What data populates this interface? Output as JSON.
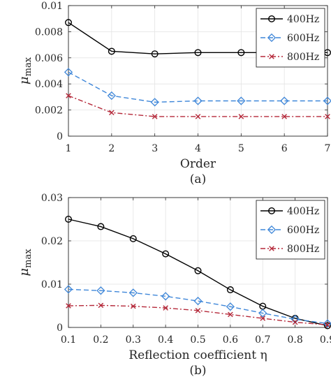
{
  "chart_data": [
    {
      "type": "line",
      "caption": "(a)",
      "xlabel": "Order",
      "ylabel": "μ",
      "ylabel_sub": "max",
      "xlim": [
        1,
        7
      ],
      "ylim": [
        0,
        0.01
      ],
      "xticks": [
        1,
        2,
        3,
        4,
        5,
        6,
        7
      ],
      "xtick_labels": [
        "1",
        "2",
        "3",
        "4",
        "5",
        "6",
        "7"
      ],
      "yticks": [
        0,
        0.002,
        0.004,
        0.006,
        0.008,
        0.01
      ],
      "ytick_labels": [
        "0",
        "0.002",
        "0.004",
        "0.006",
        "0.008",
        "0.01"
      ],
      "grid": true,
      "legend_position": "top-right",
      "x": [
        1,
        2,
        3,
        4,
        5,
        6,
        7
      ],
      "series": [
        {
          "name": "400Hz",
          "color": "#000000",
          "marker": "circle",
          "line": "solid",
          "values": [
            0.0087,
            0.0065,
            0.0063,
            0.0064,
            0.0064,
            0.0064,
            0.0064
          ]
        },
        {
          "name": "600Hz",
          "color": "#3f87d9",
          "marker": "diamond",
          "line": "dashed",
          "values": [
            0.0049,
            0.0031,
            0.0026,
            0.0027,
            0.0027,
            0.0027,
            0.0027
          ]
        },
        {
          "name": "800Hz",
          "color": "#b5293a",
          "marker": "cross",
          "line": "dashdot",
          "values": [
            0.0031,
            0.0018,
            0.0015,
            0.0015,
            0.0015,
            0.0015,
            0.0015
          ]
        }
      ]
    },
    {
      "type": "line",
      "caption": "(b)",
      "xlabel": "Reflection coefficient η",
      "ylabel": "μ",
      "ylabel_sub": "max",
      "xlim": [
        0.1,
        0.9
      ],
      "ylim": [
        0,
        0.03
      ],
      "xticks": [
        0.1,
        0.2,
        0.3,
        0.4,
        0.5,
        0.6,
        0.7,
        0.8,
        0.9
      ],
      "xtick_labels": [
        "0.1",
        "0.2",
        "0.3",
        "0.4",
        "0.5",
        "0.6",
        "0.7",
        "0.8",
        "0.9"
      ],
      "yticks": [
        0,
        0.01,
        0.02,
        0.03
      ],
      "ytick_labels": [
        "0",
        "0.01",
        "0.02",
        "0.03"
      ],
      "grid": true,
      "legend_position": "top-right",
      "x": [
        0.1,
        0.2,
        0.3,
        0.4,
        0.5,
        0.6,
        0.7,
        0.8,
        0.9
      ],
      "series": [
        {
          "name": "400Hz",
          "color": "#000000",
          "marker": "circle",
          "line": "solid",
          "values": [
            0.025,
            0.0233,
            0.0205,
            0.017,
            0.0131,
            0.0087,
            0.0049,
            0.0021,
            0.0004
          ]
        },
        {
          "name": "600Hz",
          "color": "#3f87d9",
          "marker": "diamond",
          "line": "dashed",
          "values": [
            0.0088,
            0.0085,
            0.008,
            0.0072,
            0.0061,
            0.0048,
            0.0033,
            0.0019,
            0.0009
          ]
        },
        {
          "name": "800Hz",
          "color": "#b5293a",
          "marker": "cross",
          "line": "dashdot",
          "values": [
            0.005,
            0.0051,
            0.0049,
            0.0045,
            0.0039,
            0.003,
            0.0021,
            0.0012,
            0.0006
          ]
        }
      ]
    }
  ]
}
